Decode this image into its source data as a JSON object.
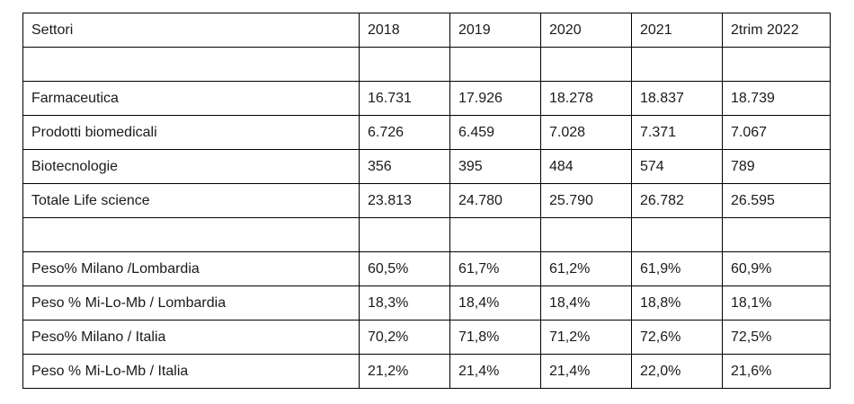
{
  "table": {
    "border_color": "#000000",
    "text_color": "#1a1a1a",
    "background": "#ffffff",
    "header": [
      "Settori",
      "2018",
      "2019",
      "2020",
      "2021",
      "2trim 2022"
    ],
    "rows": [
      [
        "",
        "",
        "",
        "",
        "",
        ""
      ],
      [
        "Farmaceutica",
        "16.731",
        "17.926",
        "18.278",
        "18.837",
        "18.739"
      ],
      [
        "Prodotti biomedicali",
        "6.726",
        "6.459",
        "7.028",
        "7.371",
        "7.067"
      ],
      [
        "Biotecnologie",
        "356",
        "395",
        "484",
        "574",
        "789"
      ],
      [
        "Totale Life science",
        "23.813",
        "24.780",
        "25.790",
        "26.782",
        "26.595"
      ],
      [
        "",
        "",
        "",
        "",
        "",
        ""
      ],
      [
        "Peso% Milano /Lombardia",
        "60,5%",
        "61,7%",
        "61,2%",
        "61,9%",
        "60,9%"
      ],
      [
        "Peso % Mi-Lo-Mb / Lombardia",
        "18,3%",
        "18,4%",
        "18,4%",
        "18,8%",
        "18,1%"
      ],
      [
        "Peso% Milano / Italia",
        "70,2%",
        "71,8%",
        "71,2%",
        "72,6%",
        "72,5%"
      ],
      [
        "Peso % Mi-Lo-Mb / Italia",
        "21,2%",
        "21,4%",
        "21,4%",
        "22,0%",
        "21,6%"
      ]
    ]
  }
}
